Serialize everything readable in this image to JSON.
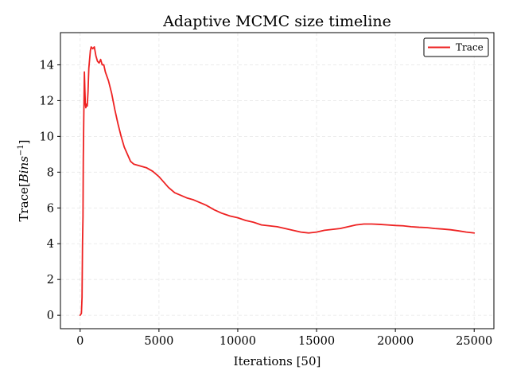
{
  "chart_data": {
    "type": "line",
    "title": "Adaptive MCMC size timeline",
    "xlabel": "Iterations [50]",
    "ylabel_prefix": "Trace[",
    "ylabel_math": "Bins",
    "ylabel_sup": "−1",
    "ylabel_suffix": "]",
    "xlim": [
      -1250,
      26250
    ],
    "ylim": [
      -0.75,
      15.8
    ],
    "xticks": [
      0,
      5000,
      10000,
      15000,
      20000,
      25000
    ],
    "yticks": [
      0,
      2,
      4,
      6,
      8,
      10,
      12,
      14
    ],
    "xtick_labels": [
      "0",
      "5000",
      "10000",
      "15000",
      "20000",
      "25000"
    ],
    "ytick_labels": [
      "0",
      "2",
      "4",
      "6",
      "8",
      "10",
      "12",
      "14"
    ],
    "grid": true,
    "legend_position": "top-right",
    "series": [
      {
        "name": "Trace",
        "color": "#ee2222",
        "x": [
          0,
          80,
          120,
          150,
          180,
          200,
          230,
          270,
          300,
          330,
          360,
          400,
          450,
          500,
          550,
          600,
          650,
          700,
          800,
          900,
          1000,
          1100,
          1200,
          1300,
          1400,
          1500,
          1600,
          1800,
          2000,
          2200,
          2400,
          2600,
          2800,
          3000,
          3200,
          3400,
          3600,
          3800,
          4000,
          4200,
          4400,
          4600,
          4800,
          5000,
          5300,
          5600,
          6000,
          6400,
          6800,
          7200,
          7600,
          8000,
          8500,
          9000,
          9500,
          10000,
          10500,
          11000,
          11500,
          12000,
          12500,
          13000,
          13500,
          14000,
          14500,
          15000,
          15500,
          16000,
          16500,
          17000,
          17500,
          18000,
          18500,
          19000,
          19500,
          20000,
          20500,
          21000,
          21500,
          22000,
          22500,
          23000,
          23500,
          24000,
          24500,
          25000
        ],
        "values": [
          0.0,
          0.1,
          1.0,
          4.0,
          5.5,
          8.8,
          11.0,
          13.6,
          12.6,
          11.8,
          11.6,
          11.8,
          11.7,
          12.5,
          13.8,
          14.3,
          14.8,
          15.0,
          14.9,
          15.0,
          14.5,
          14.2,
          14.1,
          14.3,
          14.0,
          14.0,
          13.6,
          13.1,
          12.4,
          11.5,
          10.7,
          10.0,
          9.4,
          9.0,
          8.6,
          8.45,
          8.4,
          8.35,
          8.3,
          8.25,
          8.15,
          8.05,
          7.9,
          7.75,
          7.45,
          7.15,
          6.85,
          6.7,
          6.55,
          6.45,
          6.3,
          6.15,
          5.9,
          5.7,
          5.55,
          5.45,
          5.3,
          5.2,
          5.05,
          5.0,
          4.95,
          4.85,
          4.75,
          4.65,
          4.6,
          4.65,
          4.75,
          4.8,
          4.85,
          4.95,
          5.05,
          5.1,
          5.1,
          5.08,
          5.05,
          5.02,
          5.0,
          4.95,
          4.92,
          4.9,
          4.85,
          4.82,
          4.78,
          4.72,
          4.65,
          4.6
        ]
      }
    ]
  }
}
